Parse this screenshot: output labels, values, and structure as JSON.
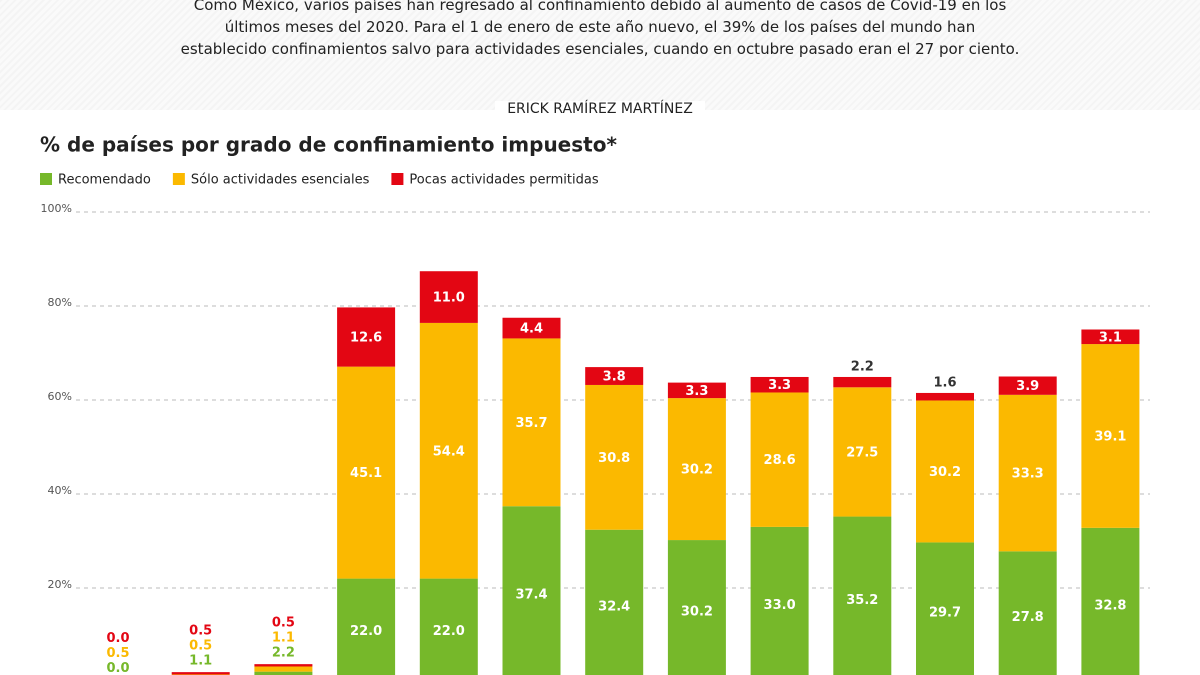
{
  "intro": "Como México, varios países han regresado al confinamiento debido al aumento de casos de Covid-19 en los últimos meses del 2020. Para el 1 de enero de este año nuevo, el 39% de los países del mundo han establecido confinamientos salvo para actividades esenciales, cuando en octubre pasado eran el 27 por ciento.",
  "byline": "ERICK RAMÍREZ MARTÍNEZ",
  "chart_data": {
    "type": "stacked-bar",
    "title": "% de países por grado de confinamiento impuesto*",
    "categories": [
      null,
      null,
      null,
      null,
      null,
      null,
      null,
      null,
      null,
      null,
      null,
      null,
      null
    ],
    "series": [
      {
        "name": "Recomendado",
        "color": "#76b82a",
        "values": [
          0.0,
          1.1,
          2.2,
          22.0,
          22.0,
          37.4,
          32.4,
          30.2,
          33.0,
          35.2,
          29.7,
          27.8,
          32.8
        ],
        "value_labels": [
          "0.0",
          "1.1",
          "2.2",
          "22.0",
          "22.0",
          "37.4",
          "32.4",
          "30.2",
          "33.0",
          "35.2",
          "29.7",
          "27.8",
          "32.8"
        ]
      },
      {
        "name": "Sólo actividades esenciales",
        "color": "#fbb900",
        "values": [
          0.5,
          0.5,
          1.1,
          45.1,
          54.4,
          35.7,
          30.8,
          30.2,
          28.6,
          27.5,
          30.2,
          33.3,
          39.1
        ],
        "value_labels": [
          "0.5",
          "0.5",
          "1.1",
          "45.1",
          "54.4",
          "35.7",
          "30.8",
          "30.2",
          "28.6",
          "27.5",
          "30.2",
          "33.3",
          "39.1"
        ]
      },
      {
        "name": "Pocas actividades permitidas",
        "color": "#e30613",
        "values": [
          0.0,
          0.5,
          0.5,
          12.6,
          11.0,
          4.4,
          3.8,
          3.3,
          3.3,
          2.2,
          1.6,
          3.9,
          3.1
        ],
        "value_labels": [
          "0.0",
          "0.5",
          "0.5",
          "12.6",
          "11.0",
          "4.4",
          "3.8",
          "3.3",
          "3.3",
          "2.2",
          "1.6",
          "3.9",
          "3.1"
        ]
      }
    ],
    "ylim": [
      0,
      100
    ],
    "yticks": [
      {
        "value": 20,
        "label": "20%"
      },
      {
        "value": 40,
        "label": "40%"
      },
      {
        "value": 60,
        "label": "60%"
      },
      {
        "value": 80,
        "label": "80%"
      },
      {
        "value": 100,
        "label": "100%"
      }
    ],
    "grid": true
  }
}
